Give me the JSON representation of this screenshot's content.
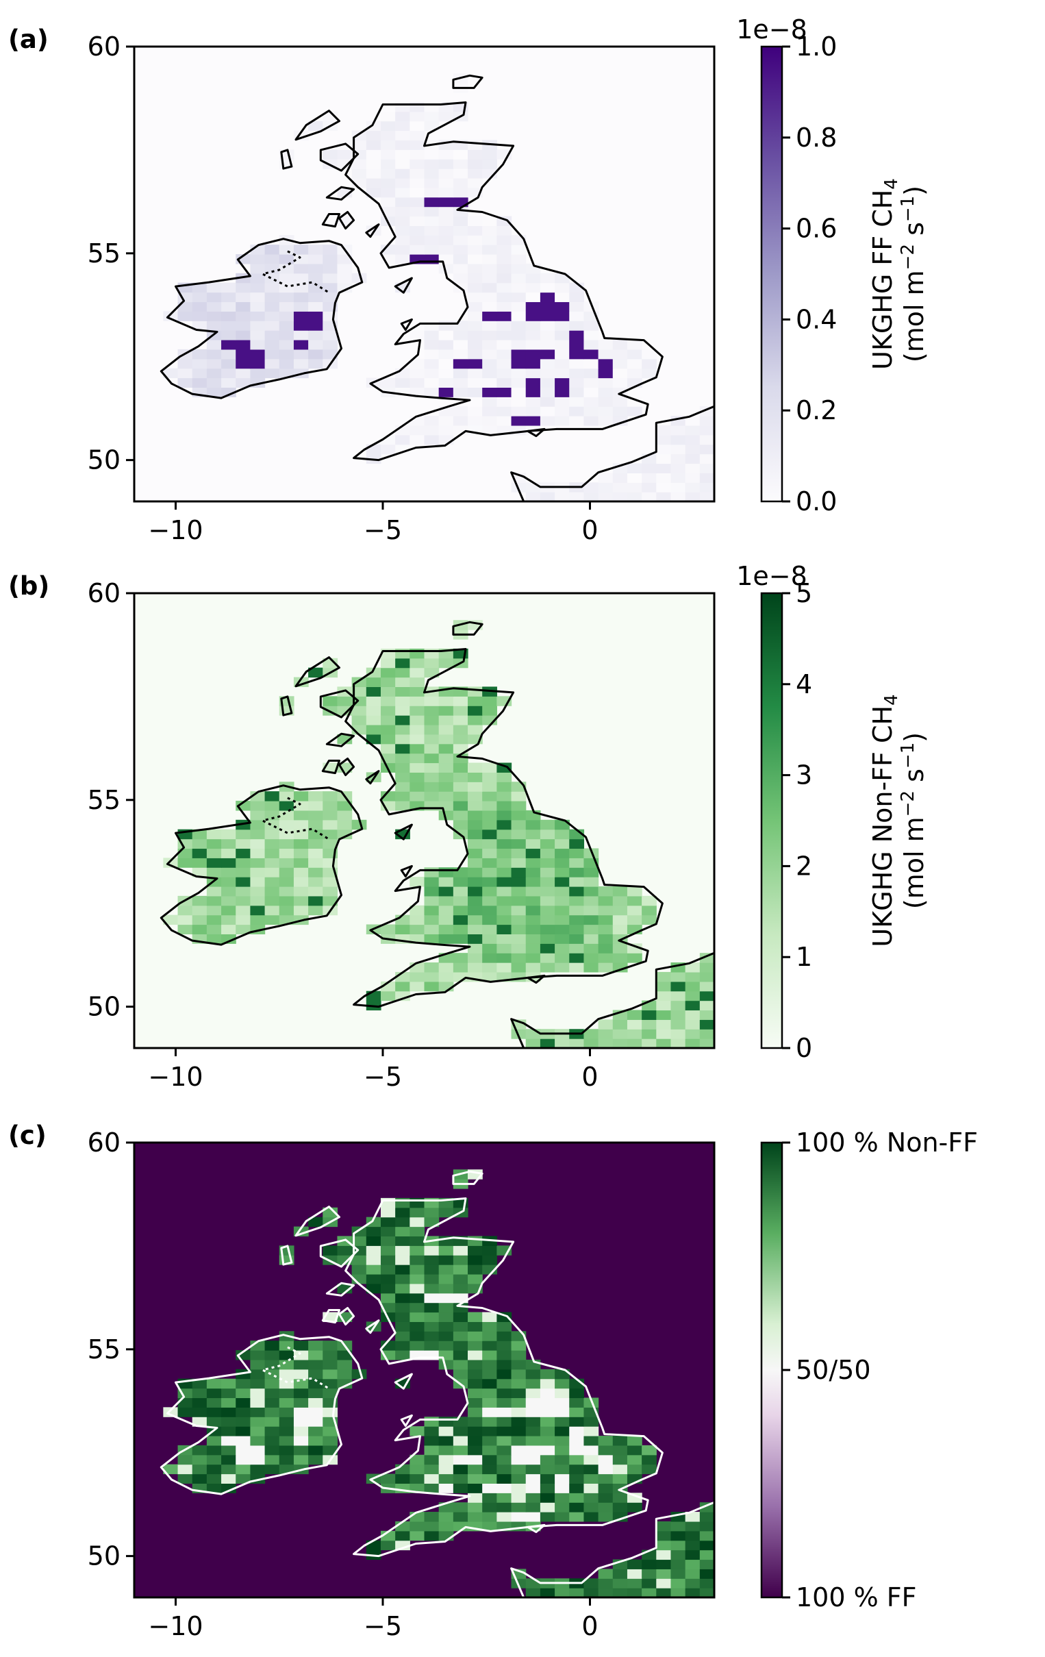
{
  "chart_data": [
    {
      "panel_label": "(a)",
      "type": "heatmap",
      "xticks": [
        "−10",
        "−5",
        "0"
      ],
      "yticks": [
        "60",
        "55",
        "50"
      ],
      "xlim": [
        -11,
        3
      ],
      "ylim": [
        49,
        60
      ],
      "colormap": "Purples",
      "colors": {
        "low": "#fcfbfd",
        "mid": "#9e9ac8",
        "high": "#3f007d",
        "coastline": "#000000"
      },
      "colorbar": {
        "label_line1": "UKGHG FF CH",
        "label_sub": "4",
        "label_line2": "(mol m",
        "exp1": "−2",
        "label_mid": " s",
        "exp2": "−1",
        "label_end": ")",
        "offset": "1e−8",
        "ticks": [
          "0.0",
          "0.2",
          "0.4",
          "0.6",
          "0.8",
          "1.0"
        ],
        "range": [
          0,
          1.0
        ]
      }
    },
    {
      "panel_label": "(b)",
      "type": "heatmap",
      "xticks": [
        "−10",
        "−5",
        "0"
      ],
      "yticks": [
        "60",
        "55",
        "50"
      ],
      "xlim": [
        -11,
        3
      ],
      "ylim": [
        49,
        60
      ],
      "colormap": "Greens",
      "colors": {
        "low": "#f7fcf5",
        "mid": "#74c476",
        "high": "#00441b",
        "coastline": "#000000"
      },
      "colorbar": {
        "label_line1": "UKGHG Non-FF CH",
        "label_sub": "4",
        "label_line2": "(mol m",
        "exp1": "−2",
        "label_mid": " s",
        "exp2": "−1",
        "label_end": ")",
        "offset": "1e−8",
        "ticks": [
          "0",
          "1",
          "2",
          "3",
          "4",
          "5"
        ],
        "range": [
          0,
          5
        ]
      }
    },
    {
      "panel_label": "(c)",
      "type": "heatmap",
      "xticks": [
        "−10",
        "−5",
        "0"
      ],
      "yticks": [
        "60",
        "55",
        "50"
      ],
      "xlim": [
        -11,
        3
      ],
      "ylim": [
        49,
        60
      ],
      "colormap": "PRGn",
      "colors": {
        "low": "#40004b",
        "mid": "#f7f7f7",
        "high": "#00441b",
        "coastline": "#ffffff"
      },
      "colorbar": {
        "ticks": [
          "100 % FF",
          "50/50",
          "100 % Non-FF"
        ]
      }
    }
  ]
}
